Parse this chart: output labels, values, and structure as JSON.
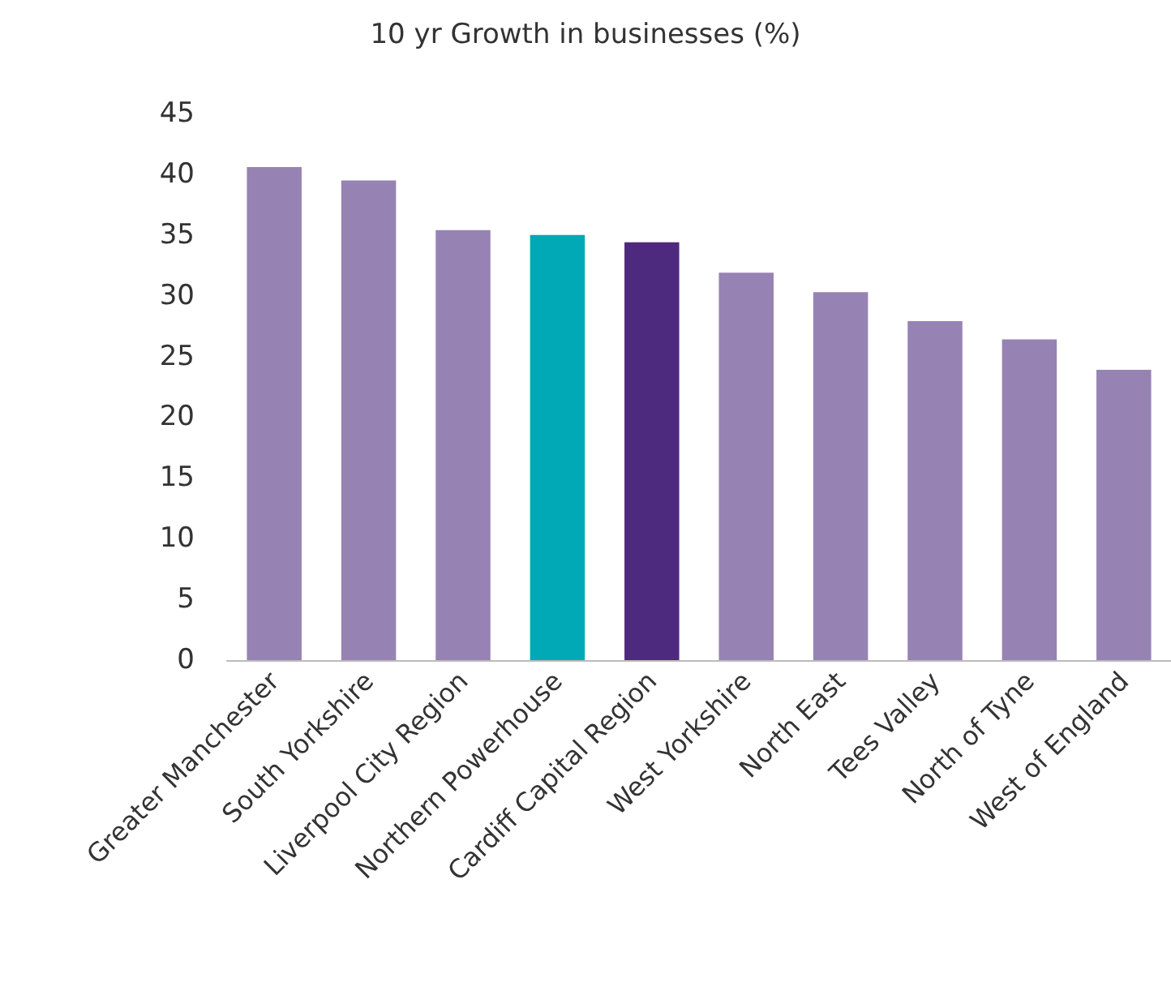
{
  "chart_data": {
    "type": "bar",
    "title": "10 yr Growth in businesses (%)",
    "categories": [
      "Greater Manchester",
      "South Yorkshire",
      "Liverpool City Region",
      "Northern Powerhouse",
      "Cardiff Capital Region",
      "West Yorkshire",
      "North East",
      "Tees Valley",
      "North of Tyne",
      "West of England"
    ],
    "values": [
      40.6,
      39.5,
      35.4,
      35.0,
      34.4,
      31.9,
      30.3,
      27.9,
      26.4,
      23.9
    ],
    "colors": [
      "#9683b4",
      "#9683b4",
      "#9683b4",
      "#00a9b5",
      "#4e2a7e",
      "#9683b4",
      "#9683b4",
      "#9683b4",
      "#9683b4",
      "#9683b4"
    ],
    "ylim": [
      0,
      45
    ],
    "yticks": [
      0,
      5,
      10,
      15,
      20,
      25,
      30,
      35,
      40,
      45
    ],
    "grid": false
  }
}
